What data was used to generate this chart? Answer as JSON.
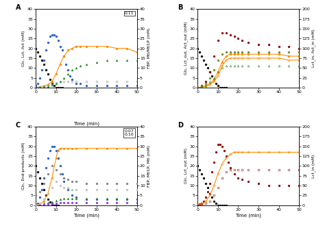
{
  "figsize": [
    4.74,
    3.33
  ],
  "dpi": 100,
  "xlim": [
    0,
    50
  ],
  "xticks": [
    0,
    10,
    20,
    30,
    40,
    50
  ],
  "panel_A": {
    "label": "A",
    "box_text": "0.11",
    "ylim_left": [
      0,
      40
    ],
    "ylim_right": [
      0,
      40
    ],
    "ylabel_left": "Glc, Lct, Act (mM)",
    "ylabel_right": "FBP, Mtl/Mtl1P (mM)",
    "series": [
      {
        "color": "#000000",
        "marker": "o",
        "filled": true,
        "side": "left",
        "linestyle": "none",
        "x": [
          0,
          1,
          2,
          3,
          4,
          5,
          6,
          7,
          8,
          9,
          10,
          11,
          12,
          13
        ],
        "y": [
          20,
          18,
          16,
          14,
          12,
          9,
          7,
          4,
          2,
          1,
          0,
          0,
          0,
          0
        ]
      },
      {
        "color": "#1e5cc8",
        "marker": "o",
        "filled": true,
        "side": "left",
        "linestyle": "none",
        "x": [
          0,
          1,
          2,
          3,
          4,
          5,
          6,
          7,
          8,
          9,
          10,
          11,
          12,
          13,
          14,
          15,
          16,
          17,
          18,
          20,
          22,
          25,
          30,
          35,
          40,
          45,
          50
        ],
        "y": [
          1,
          2,
          5,
          9,
          14,
          19,
          23,
          26,
          27,
          27,
          26,
          24,
          21,
          19,
          16,
          12,
          9,
          6,
          4,
          2,
          2,
          1,
          1,
          1,
          1,
          1,
          1
        ]
      },
      {
        "color": "#ff8c00",
        "marker": "o",
        "filled": true,
        "side": "left",
        "linestyle": "-",
        "x": [
          0,
          2,
          4,
          6,
          8,
          10,
          12,
          14,
          16,
          18,
          20,
          22,
          25,
          30,
          35,
          40,
          45,
          50
        ],
        "y": [
          0,
          0.3,
          0.8,
          1.5,
          3,
          7,
          12,
          16,
          19,
          20,
          21,
          21,
          21,
          21,
          21,
          20,
          20,
          18
        ]
      },
      {
        "color": "#228b22",
        "marker": "^",
        "filled": true,
        "side": "left",
        "linestyle": "none",
        "x": [
          0,
          2,
          4,
          6,
          8,
          10,
          12,
          14,
          16,
          18,
          20,
          22,
          25,
          30,
          35,
          40,
          45,
          50
        ],
        "y": [
          0,
          0.2,
          0.5,
          0.8,
          1.5,
          2,
          3,
          5,
          7,
          9,
          10,
          11,
          12,
          13,
          14,
          14,
          14,
          14
        ]
      },
      {
        "color": "#909090",
        "marker": "o",
        "filled": false,
        "side": "left",
        "linestyle": "none",
        "x": [
          0,
          2,
          4,
          6,
          8,
          10,
          12,
          14,
          16,
          18,
          20,
          25,
          30,
          35,
          40,
          45,
          50
        ],
        "y": [
          0,
          0.3,
          0.8,
          1.2,
          1.8,
          2.3,
          3,
          3,
          3,
          3,
          3,
          3,
          3,
          3,
          3,
          3,
          3
        ]
      }
    ]
  },
  "panel_B": {
    "label": "B",
    "box_text": null,
    "ylim_left": [
      0,
      40
    ],
    "ylim_right": [
      0,
      200
    ],
    "ylabel_left": "Glc, Lct_out, Act_out (mM)",
    "ylabel_right": "Lct_in, Act_in (mM)",
    "series": [
      {
        "color": "#000000",
        "marker": "o",
        "filled": true,
        "side": "left",
        "linestyle": "none",
        "x": [
          0,
          1,
          2,
          3,
          4,
          5,
          6,
          7,
          8,
          9,
          10,
          11,
          12,
          13,
          14
        ],
        "y": [
          20,
          18,
          16,
          14,
          12,
          10,
          8,
          6,
          4,
          2,
          1,
          0,
          0,
          0,
          0
        ]
      },
      {
        "color": "#8b0000",
        "marker": "o",
        "filled": true,
        "side": "left",
        "linestyle": "none",
        "x": [
          0,
          2,
          4,
          6,
          8,
          10,
          12,
          14,
          16,
          18,
          20,
          22,
          25,
          30,
          35,
          40,
          45,
          50
        ],
        "y": [
          0,
          1,
          3,
          8,
          16,
          24,
          28,
          28,
          27,
          26,
          25,
          24,
          23,
          22,
          22,
          21,
          21,
          20
        ]
      },
      {
        "color": "#ff8c00",
        "marker": "o",
        "filled": true,
        "side": "left",
        "linestyle": "-",
        "x": [
          0,
          2,
          4,
          6,
          8,
          10,
          12,
          14,
          16,
          18,
          20,
          22,
          25,
          30,
          35,
          40,
          45,
          50
        ],
        "y": [
          0,
          0.4,
          1,
          2,
          4,
          8,
          13,
          16,
          17,
          17,
          17,
          17,
          17,
          17,
          17,
          17,
          16,
          16
        ]
      },
      {
        "color": "#ff8c00",
        "marker": "o",
        "filled": false,
        "side": "left",
        "linestyle": "-",
        "x": [
          0,
          2,
          4,
          6,
          8,
          10,
          12,
          14,
          16,
          18,
          20,
          22,
          25,
          30,
          35,
          40,
          45,
          50
        ],
        "y": [
          0,
          0.2,
          0.6,
          1.5,
          3,
          6,
          11,
          14,
          15,
          15,
          15,
          15,
          15,
          15,
          15,
          15,
          14,
          14
        ]
      },
      {
        "color": "#6b8e23",
        "marker": "o",
        "filled": true,
        "side": "left",
        "linestyle": "none",
        "x": [
          0,
          2,
          4,
          6,
          8,
          10,
          12,
          14,
          16,
          18,
          20,
          22,
          25,
          30,
          35,
          40,
          45,
          50
        ],
        "y": [
          0,
          0.5,
          2,
          5,
          9,
          14,
          17,
          18,
          18,
          18,
          18,
          18,
          18,
          18,
          18,
          18,
          18,
          18
        ]
      },
      {
        "color": "#228b22",
        "marker": "^",
        "filled": false,
        "side": "left",
        "linestyle": "none",
        "x": [
          0,
          2,
          4,
          6,
          8,
          10,
          12,
          14,
          16,
          18,
          20,
          22,
          25,
          30,
          35,
          40,
          45,
          50
        ],
        "y": [
          0,
          0.3,
          1,
          3,
          5,
          8,
          10,
          11,
          11,
          11,
          11,
          11,
          11,
          11,
          11,
          11,
          11,
          11
        ]
      }
    ]
  },
  "panel_C": {
    "label": "C",
    "box_text": "0.07\n0.10",
    "ylim_left": [
      0,
      40
    ],
    "ylim_right": [
      0,
      40
    ],
    "ylabel_left": "Glc, End-products (mM)",
    "ylabel_right": "FBP, Mtl1P, Mtl (mM)",
    "series": [
      {
        "color": "#000000",
        "marker": "o",
        "filled": true,
        "side": "left",
        "linestyle": "none",
        "x": [
          0,
          1,
          2,
          3,
          4,
          5,
          6,
          7,
          8,
          9,
          10,
          11
        ],
        "y": [
          20,
          17,
          14,
          11,
          8,
          5,
          3,
          1.5,
          0.5,
          0,
          0,
          0
        ]
      },
      {
        "color": "#1e5cc8",
        "marker": "o",
        "filled": true,
        "side": "left",
        "linestyle": "none",
        "x": [
          0,
          1,
          2,
          3,
          4,
          5,
          6,
          7,
          8,
          9,
          10,
          11,
          12,
          13,
          14,
          16,
          18,
          20,
          25,
          30,
          35,
          40,
          45,
          50
        ],
        "y": [
          0,
          1,
          4,
          8,
          14,
          19,
          24,
          28,
          30,
          30,
          28,
          24,
          20,
          16,
          12,
          8,
          5,
          4,
          3,
          3,
          3,
          3,
          3,
          3
        ]
      },
      {
        "color": "#ff8c00",
        "marker": "s",
        "filled": true,
        "side": "left",
        "linestyle": "-",
        "x": [
          0,
          2,
          4,
          6,
          8,
          10,
          11,
          12,
          14,
          16,
          18,
          20,
          25,
          30,
          35,
          40,
          45,
          50
        ],
        "y": [
          0,
          0.5,
          2,
          6,
          14,
          24,
          28,
          29,
          29,
          29,
          29,
          29,
          29,
          29,
          29,
          29,
          29,
          29
        ]
      },
      {
        "color": "#808080",
        "marker": "o",
        "filled": true,
        "side": "right",
        "linestyle": "none",
        "x": [
          0,
          2,
          4,
          6,
          8,
          10,
          12,
          14,
          16,
          18,
          20,
          25,
          30,
          35,
          40,
          45,
          50
        ],
        "y": [
          5,
          7,
          11,
          16,
          20,
          18,
          16,
          14,
          13,
          12,
          12,
          11,
          11,
          11,
          11,
          11,
          11
        ]
      },
      {
        "color": "#c0c0c0",
        "marker": "o",
        "filled": true,
        "side": "right",
        "linestyle": "none",
        "x": [
          0,
          2,
          4,
          6,
          8,
          10,
          12,
          14,
          16,
          18,
          20,
          25,
          30,
          35,
          40,
          45,
          50
        ],
        "y": [
          0,
          1,
          3,
          6,
          9,
          12,
          10,
          9,
          9,
          8,
          8,
          8,
          8,
          8,
          8,
          8,
          8
        ]
      },
      {
        "color": "#228b22",
        "marker": "^",
        "filled": true,
        "side": "left",
        "linestyle": "none",
        "x": [
          0,
          2,
          4,
          6,
          8,
          10,
          12,
          14,
          16,
          18,
          20,
          25,
          30,
          35,
          40,
          45,
          50
        ],
        "y": [
          0,
          0.3,
          0.8,
          1.2,
          1.8,
          2.5,
          3,
          3.5,
          3.5,
          3.5,
          3.5,
          3.5,
          3.5,
          3.5,
          3.5,
          3.5,
          3.5
        ]
      },
      {
        "color": "#9b30ff",
        "marker": "o",
        "filled": true,
        "side": "left",
        "linestyle": "none",
        "x": [
          0,
          2,
          4,
          6,
          8,
          10,
          12,
          14,
          16,
          18,
          20,
          25,
          30,
          35,
          40,
          45,
          50
        ],
        "y": [
          0,
          0.1,
          0.3,
          0.5,
          0.8,
          1,
          1.2,
          1.3,
          1.3,
          1.3,
          1.3,
          1.3,
          1.3,
          1.3,
          1.3,
          1.3,
          1.3
        ]
      }
    ]
  },
  "panel_D": {
    "label": "D",
    "box_text": null,
    "ylim_left": [
      0,
      40
    ],
    "ylim_right": [
      0,
      200
    ],
    "ylabel_left": "Glc, Lct_out (mM)",
    "ylabel_right": "Lct_in (mM)",
    "series": [
      {
        "color": "#000000",
        "marker": "o",
        "filled": true,
        "side": "left",
        "linestyle": "none",
        "x": [
          0,
          1,
          2,
          3,
          4,
          5,
          6,
          7,
          8,
          9,
          10,
          11,
          12,
          13,
          14
        ],
        "y": [
          20,
          18,
          16,
          14,
          11,
          9,
          6,
          4,
          2,
          1,
          0,
          0,
          0,
          0,
          0
        ]
      },
      {
        "color": "#8b0000",
        "marker": "o",
        "filled": true,
        "side": "left",
        "linestyle": "none",
        "x": [
          0,
          1,
          2,
          3,
          4,
          5,
          6,
          7,
          8,
          9,
          10,
          11,
          12,
          13,
          14,
          15,
          16,
          18,
          20,
          22,
          25,
          30,
          35,
          40,
          45,
          50
        ],
        "y": [
          0,
          0.5,
          1,
          2,
          4,
          7,
          11,
          17,
          22,
          27,
          31,
          31,
          30,
          28,
          25,
          22,
          19,
          16,
          14,
          13,
          12,
          11,
          10,
          10,
          10,
          10
        ]
      },
      {
        "color": "#ff8c00",
        "marker": "o",
        "filled": false,
        "side": "left",
        "linestyle": "-",
        "x": [
          0,
          2,
          4,
          6,
          8,
          10,
          12,
          14,
          16,
          18,
          20,
          22,
          25,
          30,
          35,
          40,
          45,
          50
        ],
        "y": [
          0,
          0.5,
          2,
          5,
          10,
          16,
          21,
          24,
          26,
          27,
          27,
          27,
          27,
          27,
          27,
          27,
          27,
          27
        ]
      },
      {
        "color": "#8b0000",
        "marker": "o",
        "filled": false,
        "side": "left",
        "linestyle": "none",
        "x": [
          0,
          2,
          4,
          6,
          8,
          10,
          12,
          14,
          16,
          18,
          20,
          22,
          25,
          30,
          35,
          40,
          45,
          50
        ],
        "y": [
          0,
          0.2,
          0.8,
          2,
          5,
          9,
          14,
          17,
          18,
          18,
          18,
          18,
          18,
          18,
          18,
          18,
          18,
          18
        ]
      }
    ]
  }
}
